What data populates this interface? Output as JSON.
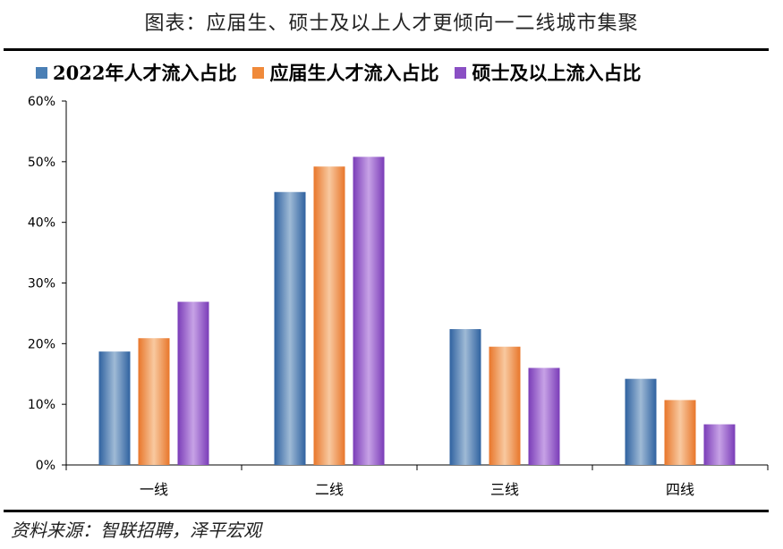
{
  "header": {
    "title": "图表：应届生、硕士及以上人才更倾向一二线城市集聚"
  },
  "footer": {
    "source": "资料来源：智联招聘，泽平宏观"
  },
  "chart_data": {
    "type": "bar",
    "title": "图表：应届生、硕士及以上人才更倾向一二线城市集聚",
    "categories": [
      "一线",
      "二线",
      "三线",
      "四线"
    ],
    "series": [
      {
        "name": "2022年人才流入占比",
        "values": [
          18.7,
          45.0,
          22.4,
          14.2
        ],
        "color": "#4a7fb5"
      },
      {
        "name": "应届生人才流入占比",
        "values": [
          20.9,
          49.2,
          19.5,
          10.7
        ],
        "color": "#f08a3a"
      },
      {
        "name": "硕士及以上流入占比",
        "values": [
          26.9,
          50.8,
          16.0,
          6.7
        ],
        "color": "#8a4fc4"
      }
    ],
    "ylim": [
      0,
      60
    ],
    "yticks": [
      "0%",
      "10%",
      "20%",
      "30%",
      "40%",
      "50%",
      "60%"
    ],
    "xlabel": "",
    "ylabel": "",
    "grid": false,
    "legend_position": "top"
  }
}
